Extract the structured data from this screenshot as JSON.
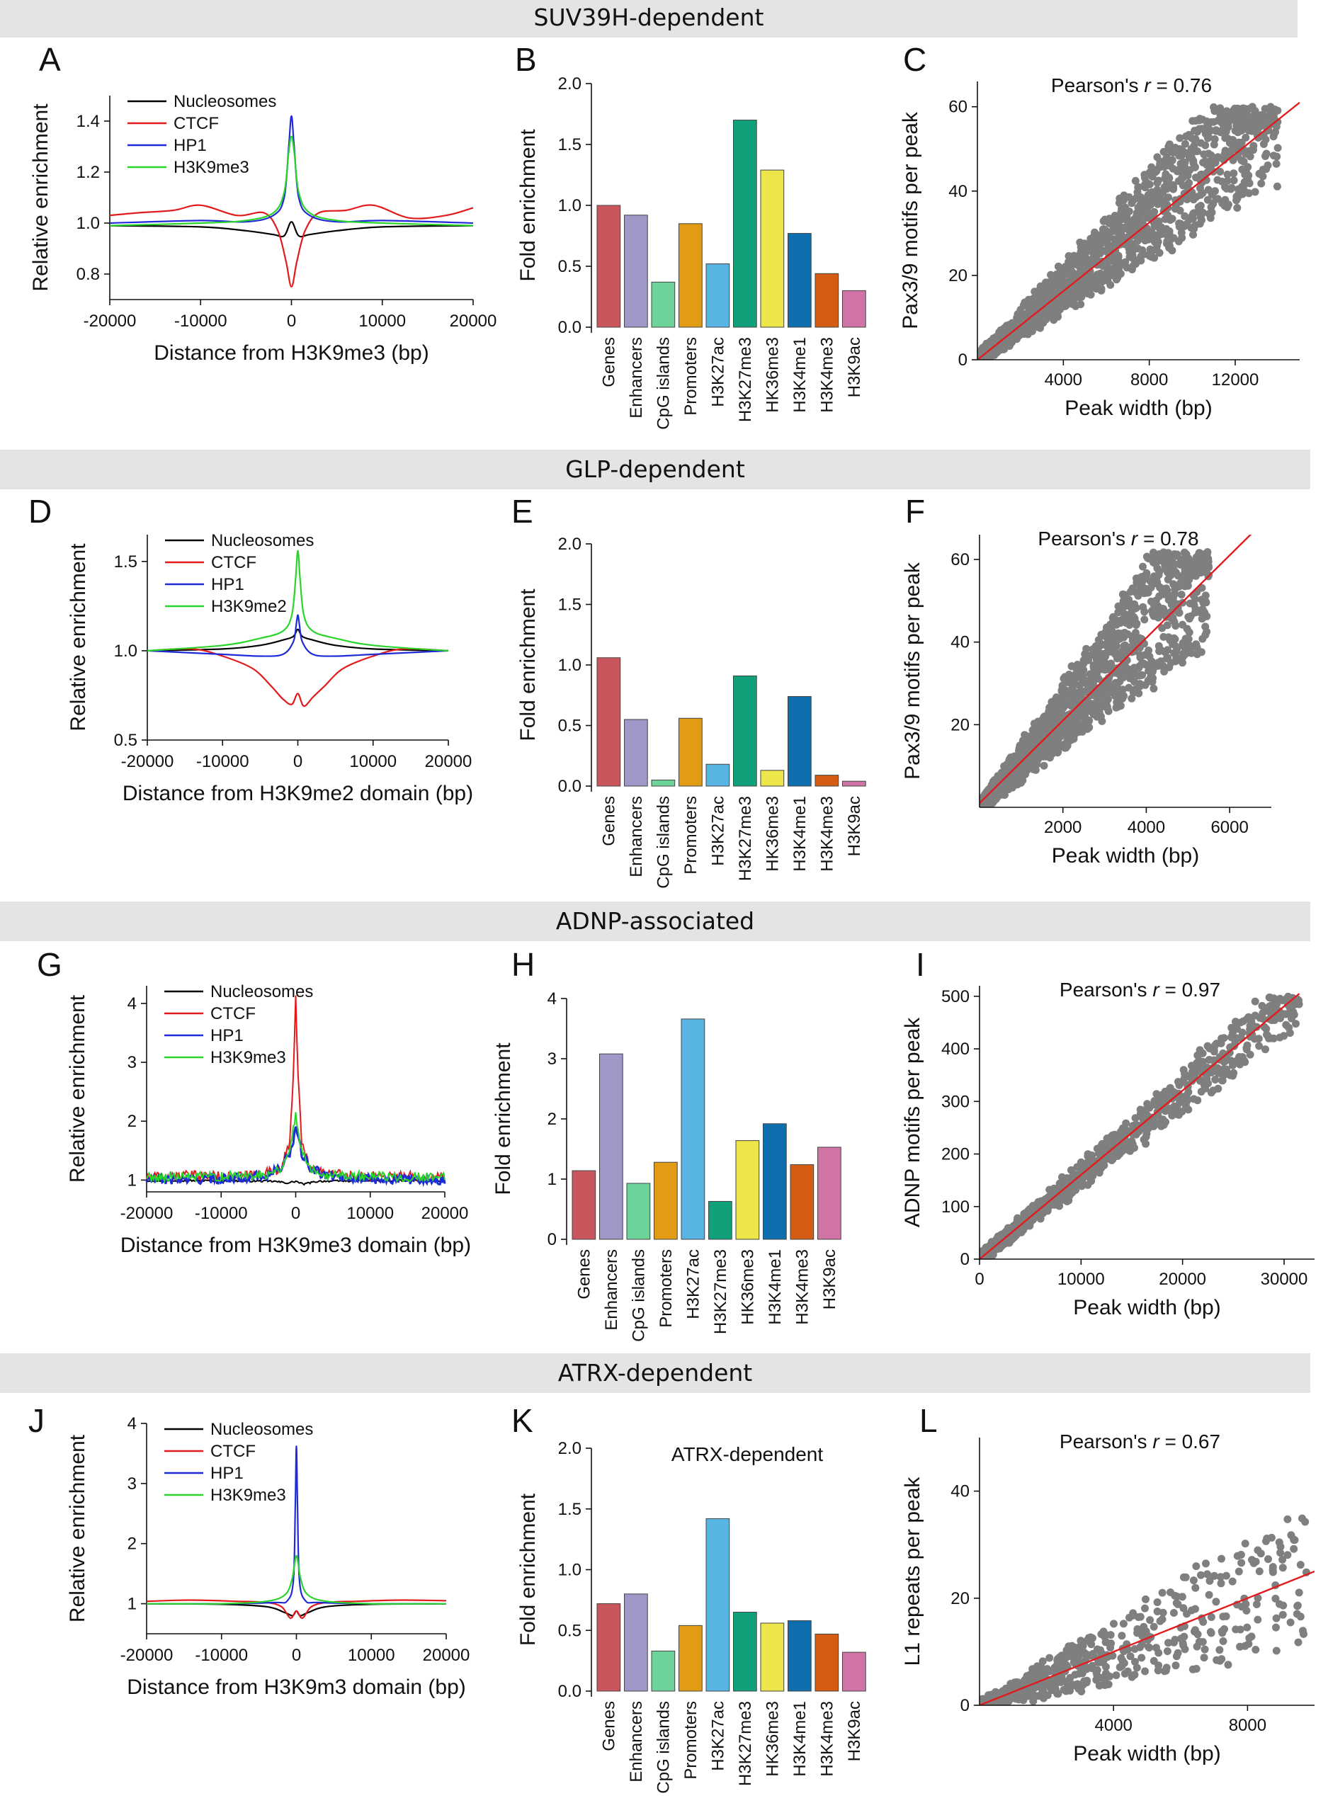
{
  "figure": {
    "headers": [
      "SUV39H-dependent",
      "GLP-dependent",
      "ADNP-associated",
      "ATRX-dependent"
    ]
  },
  "colors": {
    "header_band": "#e4e4e4",
    "scatter_point": "#7f7f7f",
    "fit_line": "#e31a1c",
    "Nucleosomes": "#000000",
    "CTCF": "#e31a1c",
    "HP1": "#1f2bd6",
    "H3K9me3": "#2ad42a",
    "H3K9me2": "#2ad42a",
    "bars": [
      "#c8565c",
      "#9d98c8",
      "#6ed39a",
      "#e29b15",
      "#58b4e3",
      "#10a07a",
      "#ece64a",
      "#0f6fae",
      "#d45d13",
      "#cf74a4"
    ]
  },
  "chart_data": [
    {
      "panel": "A",
      "type": "line",
      "xlabel": "Distance from H3K9me3 (bp)",
      "ylabel": "Relative enrichment",
      "xlim": [
        -20000,
        20000
      ],
      "ylim": [
        0.7,
        1.5
      ],
      "xticks": [
        -20000,
        -10000,
        0,
        10000,
        20000
      ],
      "xtick_labels": [
        "-20000",
        "-10000",
        "0",
        "10000",
        "20000"
      ],
      "yticks": [
        0.8,
        1.0,
        1.2,
        1.4
      ],
      "ytick_labels": [
        "0.8",
        "1.0",
        "1.2",
        "1.4"
      ],
      "legend": [
        "Nucleosomes",
        "CTCF",
        "HP1",
        "H3K9me3"
      ],
      "series": [
        {
          "name": "Nucleosomes",
          "x": [
            -20000,
            -10000,
            -5000,
            -2000,
            -800,
            0,
            800,
            2000,
            5000,
            10000,
            20000
          ],
          "y": [
            0.99,
            0.985,
            0.97,
            0.955,
            0.95,
            1.005,
            0.95,
            0.955,
            0.97,
            0.985,
            0.99
          ]
        },
        {
          "name": "CTCF",
          "x": [
            -20000,
            -17000,
            -13000,
            -10000,
            -6000,
            -3000,
            -1500,
            -600,
            0,
            600,
            1500,
            3000,
            6000,
            9000,
            13000,
            17000,
            20000
          ],
          "y": [
            1.03,
            1.04,
            1.05,
            1.07,
            1.03,
            1.04,
            0.97,
            0.85,
            0.75,
            0.85,
            0.97,
            1.04,
            1.05,
            1.07,
            1.02,
            1.03,
            1.06
          ]
        },
        {
          "name": "HP1",
          "x": [
            -20000,
            -10000,
            -5000,
            -2000,
            -800,
            -300,
            0,
            300,
            800,
            2000,
            5000,
            10000,
            20000
          ],
          "y": [
            1.0,
            1.01,
            1.005,
            1.03,
            1.1,
            1.3,
            1.42,
            1.3,
            1.1,
            1.03,
            1.005,
            1.01,
            1.0
          ]
        },
        {
          "name": "H3K9me3",
          "x": [
            -20000,
            -10000,
            -5000,
            -2000,
            -800,
            -300,
            0,
            300,
            800,
            2000,
            5000,
            10000,
            20000
          ],
          "y": [
            0.99,
            1.0,
            1.01,
            1.04,
            1.12,
            1.28,
            1.34,
            1.28,
            1.12,
            1.04,
            1.01,
            1.0,
            0.99
          ]
        }
      ]
    },
    {
      "panel": "B",
      "type": "bar",
      "ylabel": "Fold enrichment",
      "ylim": [
        0,
        2.0
      ],
      "yticks": [
        0,
        0.5,
        1.0,
        1.5,
        2.0
      ],
      "ytick_labels": [
        "0.0",
        "0.5",
        "1.0",
        "1.5",
        "2.0"
      ],
      "categories": [
        "Genes",
        "Enhancers",
        "CpG islands",
        "Promoters",
        "H3K27ac",
        "H3K27me3",
        "HK36me3",
        "H3K4me1",
        "H3K4me3",
        "H3K9ac"
      ],
      "values": [
        1.0,
        0.92,
        0.37,
        0.85,
        0.52,
        1.7,
        1.29,
        0.77,
        0.44,
        0.3
      ]
    },
    {
      "panel": "C",
      "type": "scatter",
      "xlabel": "Peak width (bp)",
      "ylabel": "Pax3/9 motifs per peak",
      "xlim": [
        0,
        15000
      ],
      "ylim": [
        0,
        66
      ],
      "xticks": [
        4000,
        8000,
        12000
      ],
      "xtick_labels": [
        "4000",
        "8000",
        "12000"
      ],
      "yticks": [
        0,
        20,
        40,
        60
      ],
      "ytick_labels": [
        "0",
        "20",
        "40",
        "60"
      ],
      "annotation_prefix": "Pearson's",
      "annotation_r": "r",
      "annotation_value": "= 0.76",
      "fit": {
        "x": [
          0,
          15000
        ],
        "y": [
          0,
          61
        ]
      },
      "x_max": 14000,
      "y_max": 60,
      "slope": 0.0043,
      "spread": 0.3
    },
    {
      "panel": "D",
      "type": "line",
      "xlabel": "Distance from H3K9me2 domain (bp)",
      "ylabel": "Relative enrichment",
      "xlim": [
        -20000,
        20000
      ],
      "ylim": [
        0.5,
        1.65
      ],
      "xticks": [
        -20000,
        -10000,
        0,
        10000,
        20000
      ],
      "xtick_labels": [
        "-20000",
        "-10000",
        "0",
        "10000",
        "20000"
      ],
      "yticks": [
        0.5,
        1.0,
        1.5
      ],
      "ytick_labels": [
        "0.5",
        "1.0",
        "1.5"
      ],
      "legend": [
        "Nucleosomes",
        "CTCF",
        "HP1",
        "H3K9me2"
      ],
      "series": [
        {
          "name": "Nucleosomes",
          "x": [
            -20000,
            -10000,
            -5000,
            -2000,
            -600,
            0,
            600,
            2000,
            5000,
            10000,
            20000
          ],
          "y": [
            1.0,
            1.01,
            1.03,
            1.06,
            1.08,
            1.12,
            1.08,
            1.06,
            1.03,
            1.01,
            1.0
          ]
        },
        {
          "name": "CTCF",
          "x": [
            -20000,
            -14000,
            -10000,
            -6000,
            -3500,
            -2000,
            -800,
            0,
            800,
            2000,
            3500,
            6000,
            10000,
            14000,
            20000
          ],
          "y": [
            1.0,
            1.01,
            0.97,
            0.9,
            0.8,
            0.73,
            0.7,
            0.76,
            0.69,
            0.74,
            0.8,
            0.9,
            0.97,
            1.01,
            1.0
          ]
        },
        {
          "name": "HP1",
          "x": [
            -20000,
            -10000,
            -5000,
            -2000,
            -600,
            -200,
            0,
            200,
            600,
            2000,
            5000,
            10000,
            20000
          ],
          "y": [
            1.0,
            0.98,
            0.97,
            0.98,
            1.05,
            1.15,
            1.2,
            1.15,
            1.05,
            0.98,
            0.97,
            0.98,
            1.0
          ]
        },
        {
          "name": "H3K9me2",
          "x": [
            -20000,
            -10000,
            -5000,
            -2000,
            -800,
            -300,
            0,
            300,
            800,
            2000,
            5000,
            10000,
            20000
          ],
          "y": [
            1.0,
            1.03,
            1.07,
            1.11,
            1.2,
            1.4,
            1.56,
            1.4,
            1.2,
            1.11,
            1.07,
            1.03,
            1.0
          ]
        }
      ]
    },
    {
      "panel": "E",
      "type": "bar",
      "ylabel": "Fold enrichment",
      "ylim": [
        0,
        2.0
      ],
      "yticks": [
        0,
        0.5,
        1.0,
        1.5,
        2.0
      ],
      "ytick_labels": [
        "0.0",
        "0.5",
        "1.0",
        "1.5",
        "2.0"
      ],
      "categories": [
        "Genes",
        "Enhancers",
        "CpG islands",
        "Promoters",
        "H3K27ac",
        "H3K27me3",
        "HK36me3",
        "H3K4me1",
        "H3K4me3",
        "H3K9ac"
      ],
      "values": [
        1.06,
        0.55,
        0.05,
        0.56,
        0.18,
        0.91,
        0.13,
        0.74,
        0.09,
        0.04
      ]
    },
    {
      "panel": "F",
      "type": "scatter",
      "xlabel": "Peak width (bp)",
      "ylabel": "Pax3/9 motifs per peak",
      "xlim": [
        0,
        7000
      ],
      "ylim": [
        0,
        66
      ],
      "xticks": [
        2000,
        4000,
        6000
      ],
      "xtick_labels": [
        "2000",
        "4000",
        "6000"
      ],
      "yticks": [
        20,
        40,
        60
      ],
      "ytick_labels": [
        "20",
        "40",
        "60"
      ],
      "annotation_prefix": "Pearson's",
      "annotation_r": "r",
      "annotation_value": "= 0.78",
      "fit": {
        "x": [
          0,
          7000
        ],
        "y": [
          1,
          71
        ]
      },
      "x_max": 5500,
      "y_max": 62,
      "slope": 0.011,
      "spread": 0.35
    },
    {
      "panel": "G",
      "type": "line",
      "xlabel": "Distance from H3K9me3 domain (bp)",
      "ylabel": "Relative enrichment",
      "xlim": [
        -20000,
        20000
      ],
      "ylim": [
        0.8,
        4.3
      ],
      "xticks": [
        -20000,
        -10000,
        0,
        10000,
        20000
      ],
      "xtick_labels": [
        "-20000",
        "-10000",
        "0",
        "10000",
        "20000"
      ],
      "yticks": [
        1,
        2,
        3,
        4
      ],
      "ytick_labels": [
        "1",
        "2",
        "3",
        "4"
      ],
      "legend": [
        "Nucleosomes",
        "CTCF",
        "HP1",
        "H3K9me3"
      ],
      "series": [
        {
          "name": "Nucleosomes",
          "x": [
            -20000,
            -10000,
            -3000,
            -1000,
            0,
            1000,
            3000,
            10000,
            20000
          ],
          "y": [
            0.99,
            0.99,
            0.98,
            0.95,
            0.98,
            0.93,
            0.98,
            0.99,
            0.99
          ]
        },
        {
          "name": "CTCF",
          "x": [
            -20000,
            -14000,
            -8000,
            -4000,
            -2000,
            -800,
            -250,
            0,
            250,
            800,
            2000,
            4000,
            8000,
            14000,
            20000
          ],
          "y": [
            1.05,
            1.08,
            1.06,
            1.12,
            1.2,
            1.6,
            3.0,
            4.18,
            3.0,
            1.6,
            1.2,
            1.12,
            1.06,
            1.08,
            1.05
          ]
        },
        {
          "name": "HP1",
          "x": [
            -20000,
            -10000,
            -4000,
            -2000,
            -800,
            -200,
            0,
            200,
            800,
            2000,
            4000,
            10000,
            20000
          ],
          "y": [
            1.0,
            1.02,
            1.08,
            1.2,
            1.45,
            1.75,
            1.85,
            1.75,
            1.45,
            1.2,
            1.08,
            1.02,
            1.0
          ]
        },
        {
          "name": "H3K9me3",
          "x": [
            -20000,
            -10000,
            -4000,
            -2000,
            -800,
            -200,
            0,
            200,
            800,
            2000,
            4000,
            10000,
            20000
          ],
          "y": [
            1.05,
            1.06,
            1.1,
            1.2,
            1.5,
            1.95,
            2.15,
            1.95,
            1.5,
            1.2,
            1.1,
            1.06,
            1.05
          ]
        }
      ]
    },
    {
      "panel": "H",
      "type": "bar",
      "ylabel": "Fold enrichment",
      "ylim": [
        0,
        4
      ],
      "yticks": [
        0,
        1,
        2,
        3,
        4
      ],
      "ytick_labels": [
        "0",
        "1",
        "2",
        "3",
        "4"
      ],
      "categories": [
        "Genes",
        "Enhancers",
        "CpG islands",
        "Promoters",
        "H3K27ac",
        "H3K27me3",
        "HK36me3",
        "H3K4me1",
        "H3K4me3",
        "H3K9ac"
      ],
      "values": [
        1.14,
        3.08,
        0.93,
        1.28,
        3.66,
        0.63,
        1.64,
        1.92,
        1.24,
        1.53
      ]
    },
    {
      "panel": "I",
      "type": "scatter",
      "xlabel": "Peak width (bp)",
      "ylabel": "ADNP motifs per peak",
      "xlim": [
        0,
        33000
      ],
      "ylim": [
        0,
        520
      ],
      "xticks": [
        0,
        10000,
        20000,
        30000
      ],
      "xtick_labels": [
        "0",
        "10000",
        "20000",
        "30000"
      ],
      "yticks": [
        0,
        100,
        200,
        300,
        400,
        500
      ],
      "ytick_labels": [
        "0",
        "100",
        "200",
        "300",
        "400",
        "500"
      ],
      "annotation_prefix": "Pearson's",
      "annotation_r": "r",
      "annotation_value": "= 0.97",
      "fit": {
        "x": [
          0,
          31500
        ],
        "y": [
          0,
          505
        ]
      },
      "x_max": 31500,
      "y_max": 500,
      "slope": 0.016,
      "spread": 0.12
    },
    {
      "panel": "J",
      "type": "line",
      "xlabel": "Distance from H3K9m3 domain (bp)",
      "ylabel": "Relative enrichment",
      "xlim": [
        -20000,
        20000
      ],
      "ylim": [
        0.5,
        4.0
      ],
      "xticks": [
        -20000,
        -10000,
        0,
        10000,
        20000
      ],
      "xtick_labels": [
        "-20000",
        "-10000",
        "0",
        "10000",
        "20000"
      ],
      "yticks": [
        1,
        2,
        3,
        4
      ],
      "ytick_labels": [
        "1",
        "2",
        "3",
        "4"
      ],
      "legend": [
        "Nucleosomes",
        "CTCF",
        "HP1",
        "H3K9me3"
      ],
      "series": [
        {
          "name": "Nucleosomes",
          "x": [
            -20000,
            -10000,
            -4000,
            -1500,
            -500,
            0,
            500,
            1500,
            4000,
            10000,
            20000
          ],
          "y": [
            1.0,
            0.99,
            0.95,
            0.85,
            0.8,
            0.88,
            0.8,
            0.85,
            0.95,
            0.99,
            1.0
          ]
        },
        {
          "name": "CTCF",
          "x": [
            -20000,
            -14000,
            -8000,
            -4000,
            -2000,
            -800,
            0,
            800,
            2000,
            4000,
            8000,
            14000,
            20000
          ],
          "y": [
            1.04,
            1.06,
            1.04,
            1.02,
            0.95,
            0.76,
            0.88,
            0.76,
            0.95,
            1.02,
            1.04,
            1.06,
            1.05
          ]
        },
        {
          "name": "HP1",
          "x": [
            -20000,
            -10000,
            -3000,
            -1200,
            -400,
            -150,
            0,
            150,
            400,
            1200,
            3000,
            10000,
            20000
          ],
          "y": [
            1.0,
            1.0,
            1.02,
            1.05,
            1.4,
            2.6,
            3.62,
            2.6,
            1.4,
            1.05,
            1.02,
            1.0,
            1.0
          ]
        },
        {
          "name": "H3K9me3",
          "x": [
            -20000,
            -10000,
            -4000,
            -1500,
            -600,
            -200,
            0,
            200,
            600,
            1500,
            4000,
            10000,
            20000
          ],
          "y": [
            1.0,
            1.0,
            1.04,
            1.15,
            1.4,
            1.7,
            1.8,
            1.7,
            1.4,
            1.15,
            1.04,
            1.0,
            1.0
          ]
        }
      ]
    },
    {
      "panel": "K",
      "type": "bar",
      "ylabel": "Fold enrichment",
      "ylim": [
        0,
        2.0
      ],
      "title": "ATRX-dependent",
      "yticks": [
        0,
        0.5,
        1.0,
        1.5,
        2.0
      ],
      "ytick_labels": [
        "0.0",
        "0.5",
        "1.0",
        "1.5",
        "2.0"
      ],
      "categories": [
        "Genes",
        "Enhancers",
        "CpG islands",
        "Promoters",
        "H3K27ac",
        "H3K27me3",
        "HK36me3",
        "H3K4me1",
        "H3K4me3",
        "H3K9ac"
      ],
      "values": [
        0.72,
        0.8,
        0.33,
        0.54,
        1.42,
        0.65,
        0.56,
        0.58,
        0.47,
        0.32
      ]
    },
    {
      "panel": "L",
      "type": "scatter",
      "xlabel": "Peak width (bp)",
      "ylabel": "L1 repeats per peak",
      "xlim": [
        0,
        10000
      ],
      "ylim": [
        0,
        50
      ],
      "xticks": [
        4000,
        8000
      ],
      "xtick_labels": [
        "4000",
        "8000"
      ],
      "yticks": [
        0,
        20,
        40
      ],
      "ytick_labels": [
        "0",
        "20",
        "40"
      ],
      "annotation_prefix": "Pearson's",
      "annotation_r": "r",
      "annotation_value": "= 0.67",
      "fit": {
        "x": [
          0,
          10000
        ],
        "y": [
          0,
          25
        ]
      },
      "x_max": 9800,
      "y_max": 36,
      "slope": 0.0025,
      "spread": 0.6
    }
  ]
}
